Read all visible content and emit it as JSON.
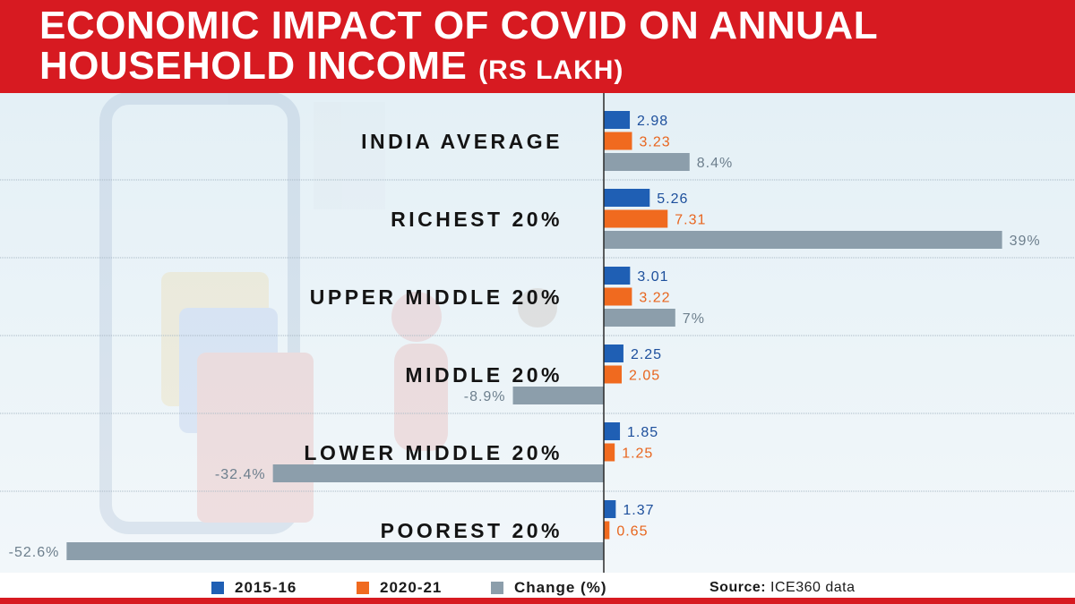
{
  "header": {
    "title_line1": "ECONOMIC IMPACT OF COVID ON ANNUAL",
    "title_line2": "HOUSEHOLD INCOME",
    "title_unit": "(RS LAKH)"
  },
  "colors": {
    "brand_red": "#d71a21",
    "series_2015": "#1f5fb4",
    "series_2020": "#f06a1f",
    "series_change": "#8c9eab",
    "label_2015": "#1d4f9c",
    "label_2020": "#e8651e",
    "label_change": "#6d7f8d"
  },
  "chart_data": {
    "type": "bar",
    "orientation": "horizontal",
    "title": "ECONOMIC IMPACT OF COVID ON ANNUAL HOUSEHOLD INCOME (RS LAKH)",
    "categories": [
      "INDIA AVERAGE",
      "RICHEST 20%",
      "UPPER MIDDLE 20%",
      "MIDDLE 20%",
      "LOWER MIDDLE 20%",
      "POOREST 20%"
    ],
    "series": [
      {
        "name": "2015-16",
        "values": [
          2.98,
          5.26,
          3.01,
          2.25,
          1.85,
          1.37
        ],
        "labels": [
          "2.98",
          "5.26",
          "3.01",
          "2.25",
          "1.85",
          "1.37"
        ]
      },
      {
        "name": "2020-21",
        "values": [
          3.23,
          7.31,
          3.22,
          2.05,
          1.25,
          0.65
        ],
        "labels": [
          "3.23",
          "7.31",
          "3.22",
          "2.05",
          "1.25",
          "0.65"
        ]
      },
      {
        "name": "Change (%)",
        "values": [
          8.4,
          39,
          7,
          -8.9,
          -32.4,
          -52.6
        ],
        "labels": [
          "8.4%",
          "39%",
          "7%",
          "-8.9%",
          "-32.4%",
          "-52.6%"
        ]
      }
    ],
    "legend_position": "bottom"
  },
  "legend": [
    {
      "label": "2015-16"
    },
    {
      "label": "2020-21"
    },
    {
      "label": "Change (%)"
    }
  ],
  "source": {
    "prefix": "Source:",
    "text": "ICE360 data"
  }
}
